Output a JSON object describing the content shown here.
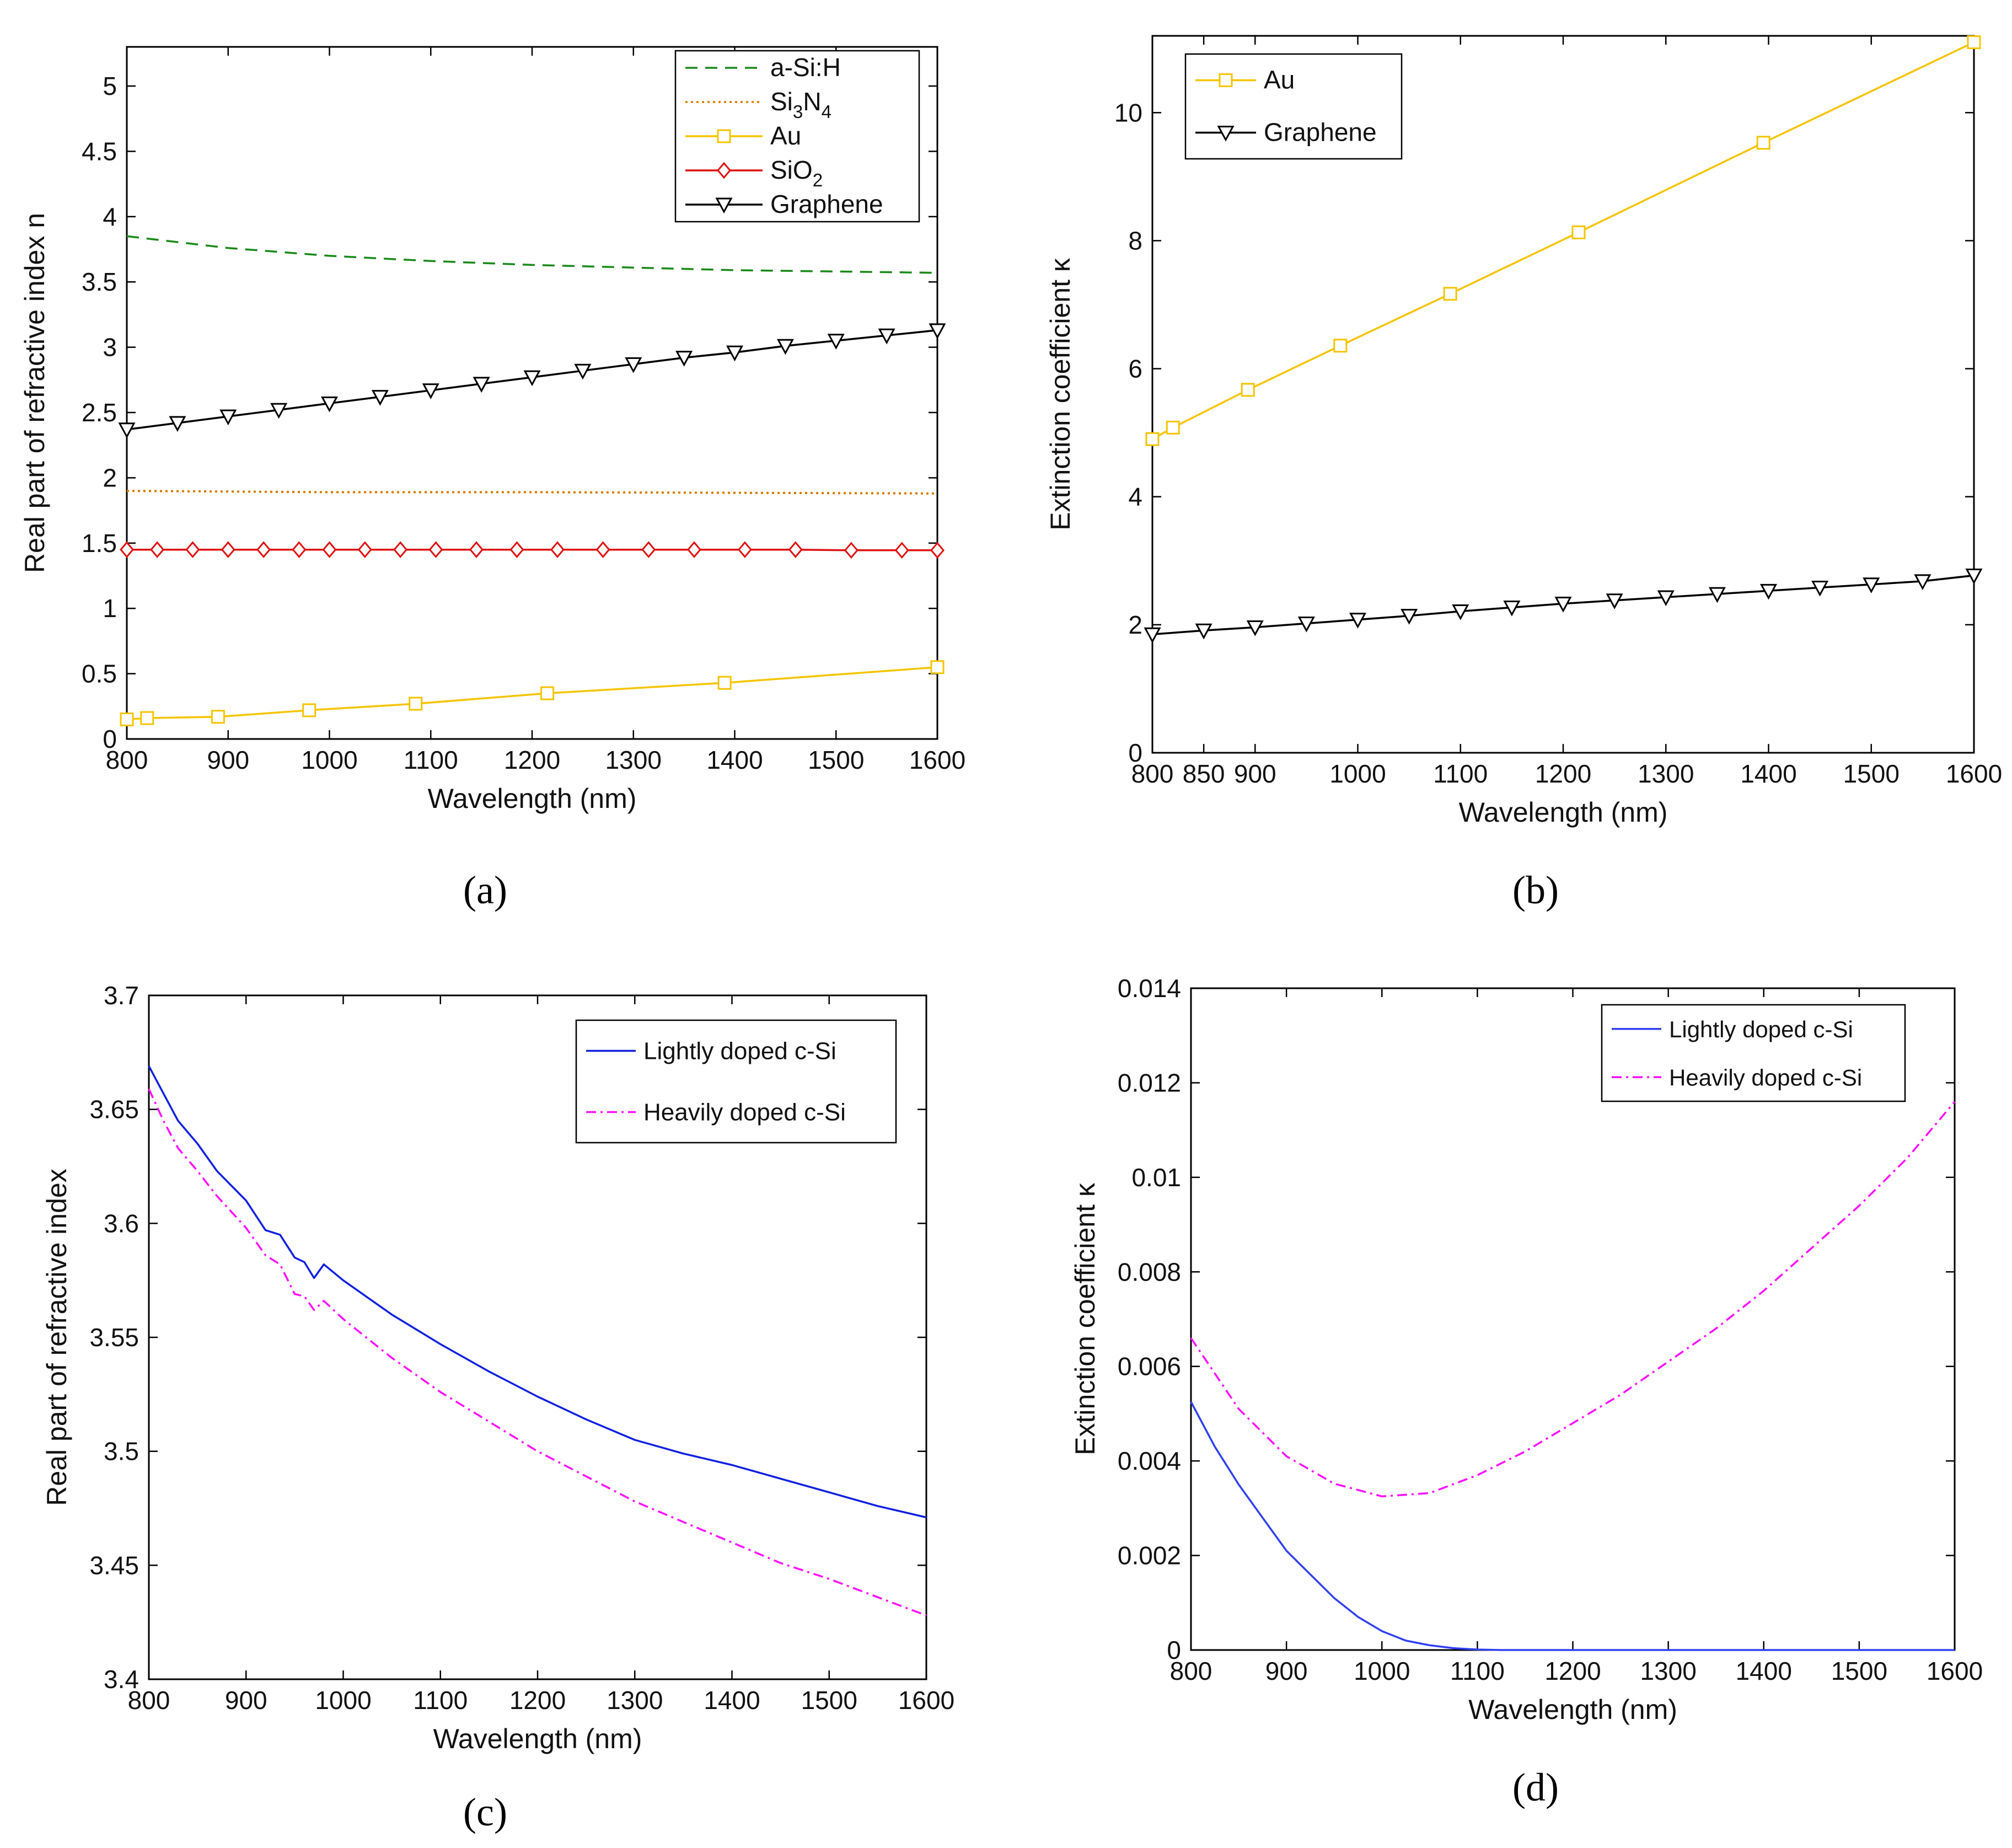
{
  "panels": [
    {
      "label": "(a)",
      "xlabel": "Wavelength (nm)",
      "ylabel": "Real part of refractive index n",
      "xlim": [
        800,
        1600
      ],
      "ylim": [
        0,
        5.3
      ],
      "xticks": [
        "800",
        "900",
        "1000",
        "1100",
        "1200",
        "1300",
        "1400",
        "1500",
        "1600"
      ],
      "yticks": [
        "0",
        "0.5",
        "1",
        "1.5",
        "2",
        "2.5",
        "3",
        "3.5",
        "4",
        "4.5",
        "5"
      ]
    },
    {
      "label": "(b)",
      "xlabel": "Wavelength (nm)",
      "ylabel": "Extinction coefficient κ",
      "xlim": [
        800,
        1600
      ],
      "ylim": [
        0,
        11.2
      ],
      "xticks": [
        "800",
        "850",
        "900",
        "1000",
        "1100",
        "1200",
        "1300",
        "1400",
        "1500",
        "1600"
      ],
      "yticks": [
        "0",
        "2",
        "4",
        "6",
        "8",
        "10"
      ]
    },
    {
      "label": "(c)",
      "xlabel": "Wavelength (nm)",
      "ylabel": "Real part of refractive index",
      "xlim": [
        800,
        1600
      ],
      "ylim": [
        3.4,
        3.7
      ],
      "xticks": [
        "800",
        "900",
        "1000",
        "1100",
        "1200",
        "1300",
        "1400",
        "1500",
        "1600"
      ],
      "yticks": [
        "3.4",
        "3.45",
        "3.5",
        "3.55",
        "3.6",
        "3.65",
        "3.7"
      ]
    },
    {
      "label": "(d)",
      "xlabel": "Wavelength (nm)",
      "ylabel": "Extinction coefficient κ",
      "xlim": [
        800,
        1600
      ],
      "ylim": [
        0,
        0.014
      ],
      "xticks": [
        "800",
        "900",
        "1000",
        "1100",
        "1200",
        "1300",
        "1400",
        "1500",
        "1600"
      ],
      "yticks": [
        "0",
        "0.002",
        "0.004",
        "0.006",
        "0.008",
        "0.01",
        "0.012",
        "0.014"
      ]
    }
  ],
  "chart_data": [
    {
      "type": "line",
      "xlabel": "Wavelength (nm)",
      "ylabel": "Real part of refractive index n",
      "xlim": [
        800,
        1600
      ],
      "ylim": [
        0,
        5.3
      ],
      "legend": "top-right",
      "grid": false,
      "series": [
        {
          "name": "a-Si:H",
          "color": "#1a8a1a",
          "style": "dashed",
          "marker": "none",
          "x": [
            800,
            900,
            1000,
            1100,
            1200,
            1300,
            1400,
            1500,
            1600
          ],
          "y": [
            3.85,
            3.76,
            3.7,
            3.66,
            3.63,
            3.61,
            3.59,
            3.58,
            3.57
          ]
        },
        {
          "name": "Si3N4",
          "color": "#d97a00",
          "style": "dotted",
          "marker": "none",
          "x": [
            800,
            1000,
            1200,
            1400,
            1600
          ],
          "y": [
            1.9,
            1.89,
            1.89,
            1.885,
            1.88
          ]
        },
        {
          "name": "Au",
          "color": "#f5c400",
          "style": "solid",
          "marker": "square",
          "x": [
            800,
            820,
            890,
            980,
            1085,
            1215,
            1390,
            1600
          ],
          "y": [
            0.15,
            0.16,
            0.17,
            0.22,
            0.27,
            0.35,
            0.43,
            0.55
          ]
        },
        {
          "name": "SiO2",
          "color": "#e01010",
          "style": "solid",
          "marker": "diamond",
          "x": [
            800,
            830,
            865,
            900,
            935,
            970,
            1000,
            1035,
            1070,
            1105,
            1145,
            1185,
            1225,
            1270,
            1315,
            1360,
            1410,
            1460,
            1515,
            1565,
            1600
          ],
          "y": [
            1.45,
            1.45,
            1.45,
            1.45,
            1.45,
            1.45,
            1.45,
            1.45,
            1.45,
            1.45,
            1.45,
            1.45,
            1.45,
            1.45,
            1.45,
            1.45,
            1.45,
            1.45,
            1.445,
            1.445,
            1.445
          ]
        },
        {
          "name": "Graphene",
          "color": "#000000",
          "style": "solid",
          "marker": "triangle-down",
          "x": [
            800,
            850,
            900,
            950,
            1000,
            1050,
            1100,
            1150,
            1200,
            1250,
            1300,
            1350,
            1400,
            1450,
            1500,
            1550,
            1600
          ],
          "y": [
            2.37,
            2.42,
            2.47,
            2.52,
            2.57,
            2.62,
            2.67,
            2.72,
            2.77,
            2.82,
            2.87,
            2.92,
            2.96,
            3.01,
            3.05,
            3.09,
            3.13
          ]
        }
      ]
    },
    {
      "type": "line",
      "xlabel": "Wavelength (nm)",
      "ylabel": "Extinction coefficient κ",
      "xlim": [
        800,
        1600
      ],
      "ylim": [
        0,
        11.2
      ],
      "legend": "top-left",
      "grid": false,
      "series": [
        {
          "name": "Au",
          "color": "#f5c400",
          "style": "solid",
          "marker": "square",
          "x": [
            800,
            820,
            893,
            983,
            1090,
            1215,
            1395,
            1600
          ],
          "y": [
            4.9,
            5.08,
            5.67,
            6.36,
            7.17,
            8.13,
            9.53,
            11.1
          ]
        },
        {
          "name": "Graphene",
          "color": "#000000",
          "style": "solid",
          "marker": "triangle-down",
          "x": [
            800,
            850,
            900,
            950,
            1000,
            1050,
            1100,
            1150,
            1200,
            1250,
            1300,
            1350,
            1400,
            1450,
            1500,
            1550,
            1600
          ],
          "y": [
            1.85,
            1.91,
            1.96,
            2.02,
            2.08,
            2.14,
            2.21,
            2.27,
            2.33,
            2.38,
            2.43,
            2.48,
            2.53,
            2.58,
            2.63,
            2.68,
            2.77
          ]
        }
      ]
    },
    {
      "type": "line",
      "xlabel": "Wavelength (nm)",
      "ylabel": "Real part of refractive index",
      "xlim": [
        800,
        1600
      ],
      "ylim": [
        3.4,
        3.7
      ],
      "legend": "top-right",
      "grid": false,
      "series": [
        {
          "name": "Lightly doped c-Si",
          "color": "#1020e0",
          "style": "solid",
          "x": [
            800,
            815,
            830,
            850,
            870,
            900,
            920,
            935,
            950,
            960,
            970,
            980,
            1000,
            1050,
            1100,
            1150,
            1200,
            1250,
            1300,
            1350,
            1400,
            1450,
            1500,
            1550,
            1600
          ],
          "y": [
            3.669,
            3.657,
            3.645,
            3.635,
            3.623,
            3.61,
            3.597,
            3.595,
            3.585,
            3.583,
            3.576,
            3.582,
            3.575,
            3.56,
            3.547,
            3.535,
            3.524,
            3.514,
            3.505,
            3.499,
            3.494,
            3.488,
            3.482,
            3.476,
            3.471
          ]
        },
        {
          "name": "Heavily doped c-Si",
          "color": "#ff10ff",
          "style": "dashdot",
          "x": [
            800,
            815,
            830,
            850,
            870,
            900,
            920,
            935,
            950,
            960,
            970,
            980,
            1000,
            1050,
            1100,
            1150,
            1200,
            1250,
            1300,
            1350,
            1400,
            1450,
            1500,
            1550,
            1600
          ],
          "y": [
            3.659,
            3.645,
            3.633,
            3.623,
            3.612,
            3.598,
            3.586,
            3.582,
            3.569,
            3.568,
            3.562,
            3.566,
            3.558,
            3.541,
            3.526,
            3.513,
            3.5,
            3.489,
            3.478,
            3.469,
            3.46,
            3.451,
            3.444,
            3.436,
            3.428
          ]
        }
      ]
    },
    {
      "type": "line",
      "xlabel": "Wavelength (nm)",
      "ylabel": "Extinction coefficient κ",
      "xlim": [
        800,
        1600
      ],
      "ylim": [
        0,
        0.014
      ],
      "legend": "top-right",
      "grid": false,
      "series": [
        {
          "name": "Lightly doped c-Si",
          "color": "#3040f0",
          "style": "solid",
          "x": [
            800,
            825,
            850,
            875,
            900,
            925,
            950,
            975,
            1000,
            1025,
            1050,
            1075,
            1100,
            1125,
            1150,
            1200,
            1300,
            1400,
            1500,
            1600
          ],
          "y": [
            0.00525,
            0.0043,
            0.0035,
            0.0028,
            0.0021,
            0.0016,
            0.0011,
            0.0007,
            0.0004,
            0.0002,
            0.0001,
            4e-05,
            1e-05,
            0,
            0,
            0,
            0,
            0,
            0,
            0
          ]
        },
        {
          "name": "Heavily doped c-Si",
          "color": "#ff10ff",
          "style": "dashdot",
          "x": [
            800,
            850,
            900,
            950,
            1000,
            1050,
            1100,
            1150,
            1200,
            1250,
            1300,
            1350,
            1400,
            1450,
            1500,
            1550,
            1600
          ],
          "y": [
            0.0066,
            0.0051,
            0.0041,
            0.00352,
            0.00325,
            0.00332,
            0.0037,
            0.0042,
            0.0048,
            0.0054,
            0.0061,
            0.0068,
            0.0076,
            0.0085,
            0.0094,
            0.0104,
            0.0116
          ]
        }
      ]
    }
  ]
}
